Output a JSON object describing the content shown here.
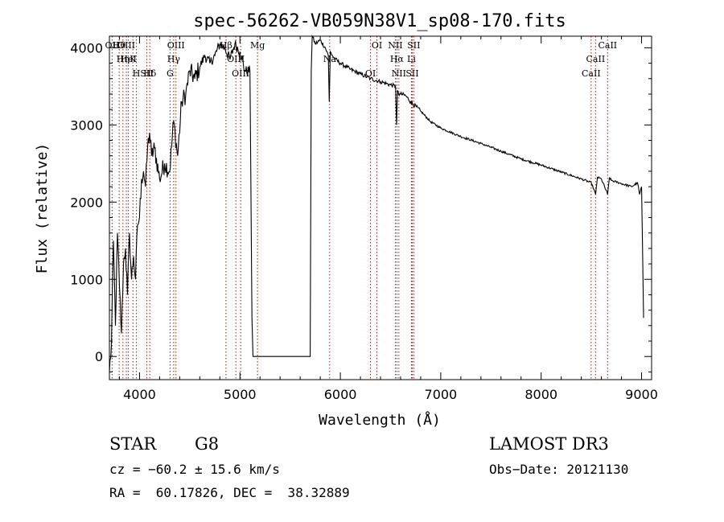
{
  "chart_data": {
    "type": "line",
    "title": "spec-56262-VB059N38V1_sp08-170.fits",
    "xlabel": "Wavelength (Å)",
    "ylabel": "Flux (relative)",
    "xlim": [
      3700,
      9100
    ],
    "ylim": [
      -300,
      4150
    ],
    "x_ticks": [
      4000,
      5000,
      6000,
      7000,
      8000,
      9000
    ],
    "y_ticks": [
      0,
      1000,
      2000,
      3000,
      4000
    ],
    "x_tick_labels": [
      "4000",
      "5000",
      "6000",
      "7000",
      "8000",
      "9000"
    ],
    "y_tick_labels": [
      "0",
      "1000",
      "2000",
      "3000",
      "4000"
    ],
    "series": [
      {
        "name": "flux",
        "x": [
          3700,
          3720,
          3740,
          3760,
          3780,
          3800,
          3820,
          3840,
          3860,
          3880,
          3900,
          3920,
          3940,
          3960,
          3980,
          4000,
          4020,
          4040,
          4060,
          4080,
          4100,
          4120,
          4150,
          4200,
          4250,
          4300,
          4340,
          4380,
          4420,
          4460,
          4500,
          4550,
          4600,
          4650,
          4700,
          4750,
          4800,
          4850,
          4900,
          4950,
          5000,
          5050,
          5100,
          5120,
          5130,
          5140,
          5150,
          5700,
          5710,
          5720,
          5750,
          5800,
          5850,
          5880,
          5890,
          5900,
          5920,
          5950,
          6000,
          6100,
          6200,
          6300,
          6400,
          6500,
          6550,
          6560,
          6570,
          6580,
          6600,
          6650,
          6700,
          6800,
          6900,
          7000,
          7200,
          7400,
          7600,
          7800,
          8000,
          8200,
          8400,
          8500,
          8542,
          8560,
          8600,
          8662,
          8680,
          8700,
          8800,
          8900,
          8960,
          8980,
          9000,
          9020
        ],
        "y": [
          -200,
          150,
          1500,
          400,
          1600,
          900,
          300,
          1200,
          1400,
          800,
          1600,
          1000,
          1300,
          1000,
          1700,
          1800,
          2300,
          2400,
          2200,
          2700,
          2900,
          2600,
          2700,
          2300,
          2500,
          2400,
          3050,
          2600,
          3300,
          3400,
          3700,
          3600,
          3750,
          3900,
          3800,
          3900,
          4050,
          4000,
          3850,
          4050,
          3950,
          3700,
          3700,
          500,
          0,
          0,
          0,
          0,
          3700,
          4150,
          4050,
          4100,
          4000,
          3900,
          3300,
          3950,
          3900,
          3850,
          3800,
          3720,
          3660,
          3600,
          3560,
          3520,
          3500,
          3000,
          3450,
          3400,
          3400,
          3380,
          3300,
          3180,
          3040,
          2960,
          2850,
          2760,
          2660,
          2560,
          2480,
          2390,
          2300,
          2250,
          2100,
          2320,
          2300,
          2100,
          2320,
          2280,
          2240,
          2200,
          2250,
          2100,
          2200,
          500
        ]
      }
    ],
    "line_markers": [
      {
        "label": "Hθ",
        "wavelength": 3797
      },
      {
        "label": "K",
        "wavelength": 3934
      },
      {
        "label": "Hδ",
        "wavelength": 4102
      },
      {
        "label": "OII",
        "wavelength": 3727
      },
      {
        "label": "HeI",
        "wavelength": 3889
      },
      {
        "label": "SII",
        "wavelength": 4072
      },
      {
        "label": "OIII",
        "wavelength": 3869
      },
      {
        "label": "Hη",
        "wavelength": 3835
      },
      {
        "label": "H",
        "wavelength": 3969
      },
      {
        "label": "OIII",
        "wavelength": 4363
      },
      {
        "label": "Hγ",
        "wavelength": 4340
      },
      {
        "label": "G",
        "wavelength": 4304
      },
      {
        "label": "Hβ",
        "wavelength": 4861
      },
      {
        "label": "OIII",
        "wavelength": 4959
      },
      {
        "label": "OIII",
        "wavelength": 5007
      },
      {
        "label": "Mg",
        "wavelength": 5175
      },
      {
        "label": "Na",
        "wavelength": 5894
      },
      {
        "label": "OI",
        "wavelength": 6300
      },
      {
        "label": "OI",
        "wavelength": 6364
      },
      {
        "label": "Hα",
        "wavelength": 6563
      },
      {
        "label": "SII",
        "wavelength": 6716
      },
      {
        "label": "NII",
        "wavelength": 6548
      },
      {
        "label": "Li",
        "wavelength": 6708
      },
      {
        "label": "NII",
        "wavelength": 6583
      },
      {
        "label": "SII",
        "wavelength": 6731
      },
      {
        "label": "CaII",
        "wavelength": 8542
      },
      {
        "label": "CaII",
        "wavelength": 8498
      },
      {
        "label": "CaII",
        "wavelength": 8662
      }
    ]
  },
  "info": {
    "object_class": "STAR",
    "subclass": "G8",
    "survey": "LAMOST DR3",
    "redshift": "cz = −60.2 ± 15.6 km/s",
    "obs_date": "Obs−Date: 20121130",
    "coords": "RA =  60.17826, DEC =  38.32889"
  },
  "colors": {
    "plot": "#000000",
    "marker_line": "#cc0000",
    "background": "#ffffff"
  }
}
